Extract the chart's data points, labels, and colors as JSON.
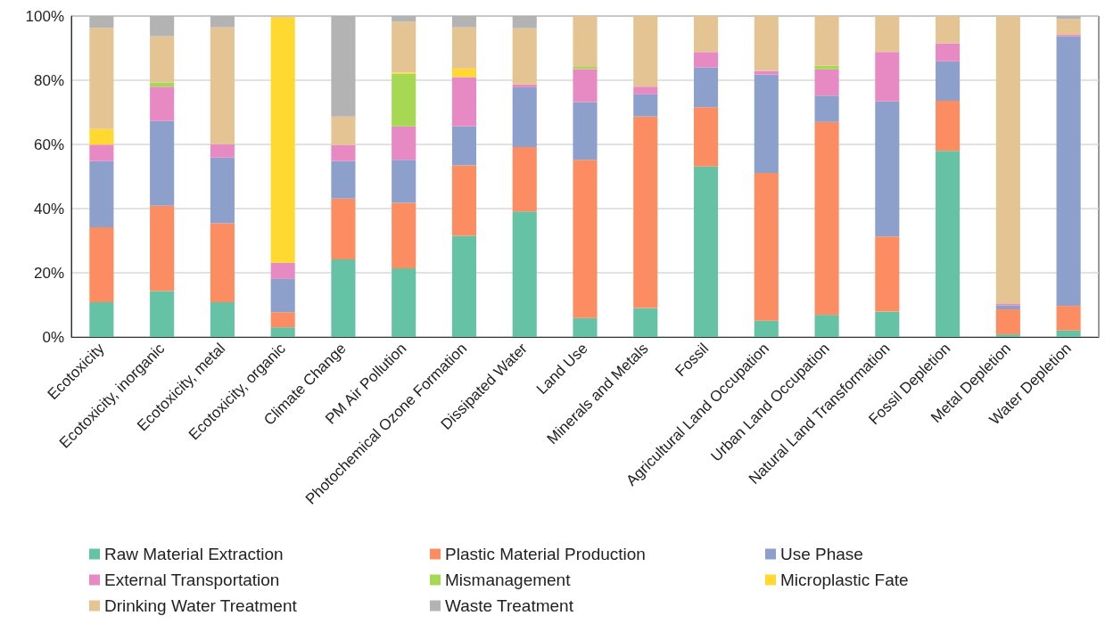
{
  "chart_data": {
    "type": "bar",
    "stacked": true,
    "grid": "y",
    "legend": "bottom",
    "categories": [
      "Ecotoxicity",
      "Ecotoxicity, inorganic",
      "Ecotoxicity, metal",
      "Ecotoxicity, organic",
      "Climate Change",
      "PM Air Pollution",
      "Photochemical Ozone Formation",
      "Dissipated Water",
      "Land Use",
      "Minerals and Metals",
      "Fossil",
      "Agricultural Land Occupation",
      "Urban Land Occupation",
      "Natural Land Transformation",
      "Fossil Depletion",
      "Metal Depletion",
      "Water Depletion"
    ],
    "ylim": [
      0,
      100
    ],
    "yticks": [
      {
        "value": 0,
        "label": "0%"
      },
      {
        "value": 20,
        "label": "20%"
      },
      {
        "value": 40,
        "label": "40%"
      },
      {
        "value": 60,
        "label": "60%"
      },
      {
        "value": 80,
        "label": "80%"
      },
      {
        "value": 100,
        "label": "100%"
      }
    ],
    "series": [
      {
        "name": "Raw Material Extraction",
        "color": "#66c2a5",
        "values": [
          10.8,
          14.3,
          10.8,
          3.0,
          24.2,
          21.4,
          31.5,
          39.1,
          5.9,
          9.0,
          53.1,
          5.1,
          6.9,
          7.9,
          58.0,
          0.8,
          2.0
        ]
      },
      {
        "name": "Plastic Material Production",
        "color": "#fc8d62",
        "values": [
          23.4,
          26.6,
          24.6,
          4.7,
          18.9,
          20.4,
          22.0,
          20.1,
          49.3,
          59.7,
          18.5,
          46.0,
          60.1,
          23.4,
          15.6,
          7.8,
          7.7
        ]
      },
      {
        "name": "Use Phase",
        "color": "#8da0cb",
        "values": [
          20.6,
          26.4,
          20.5,
          10.4,
          11.7,
          13.4,
          12.2,
          18.6,
          18.0,
          6.9,
          12.4,
          30.7,
          8.2,
          42.1,
          12.3,
          1.2,
          84.0
        ]
      },
      {
        "name": "External Transportation",
        "color": "#e78ac3",
        "values": [
          5.1,
          10.7,
          4.2,
          5.0,
          5.0,
          10.4,
          15.3,
          0.9,
          10.3,
          2.4,
          4.8,
          1.1,
          8.2,
          15.4,
          5.6,
          0.5,
          0.5
        ]
      },
      {
        "name": "Mismanagement",
        "color": "#a6d854",
        "values": [
          0,
          1.3,
          0,
          0,
          0,
          16.4,
          0,
          0,
          0.7,
          0,
          0,
          0,
          1.1,
          0,
          0,
          0,
          0
        ]
      },
      {
        "name": "Microplastic Fate",
        "color": "#ffd92f",
        "values": [
          4.9,
          0,
          0,
          76.4,
          0,
          0.4,
          2.7,
          0,
          0,
          0,
          0,
          0,
          0,
          0,
          0,
          0,
          0
        ]
      },
      {
        "name": "Drinking Water Treatment",
        "color": "#e5c494",
        "values": [
          31.5,
          14.4,
          36.4,
          0.5,
          8.9,
          15.8,
          12.8,
          17.5,
          15.8,
          22.0,
          11.2,
          17.1,
          15.5,
          11.2,
          8.5,
          89.7,
          4.9
        ]
      },
      {
        "name": "Waste Treatment",
        "color": "#b3b3b3",
        "values": [
          3.7,
          6.3,
          3.5,
          0,
          31.3,
          1.8,
          3.5,
          3.8,
          null,
          0,
          0,
          0,
          0,
          null,
          0,
          0,
          0.9
        ]
      }
    ]
  }
}
